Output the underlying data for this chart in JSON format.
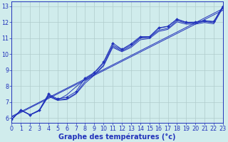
{
  "xlabel": "Graphe des températures (°c)",
  "background_color": "#d0ecec",
  "grid_color": "#b0cccc",
  "line_color": "#2233bb",
  "xlim": [
    0,
    23
  ],
  "ylim": [
    5.7,
    13.3
  ],
  "xticks": [
    0,
    1,
    2,
    3,
    4,
    5,
    6,
    7,
    8,
    9,
    10,
    11,
    12,
    13,
    14,
    15,
    16,
    17,
    18,
    19,
    20,
    21,
    22,
    23
  ],
  "yticks": [
    6,
    7,
    8,
    9,
    10,
    11,
    12,
    13
  ],
  "series_marked": [
    5.9,
    6.5,
    6.2,
    6.5,
    7.5,
    7.2,
    7.3,
    7.65,
    8.5,
    8.85,
    9.5,
    10.7,
    10.3,
    10.65,
    11.1,
    11.1,
    11.65,
    11.75,
    12.2,
    12.0,
    12.0,
    12.1,
    12.05,
    13.0
  ],
  "series_plain": [
    [
      5.9,
      6.5,
      6.2,
      6.45,
      7.4,
      7.15,
      7.2,
      7.55,
      8.3,
      8.72,
      9.3,
      10.5,
      10.2,
      10.5,
      11.0,
      11.05,
      11.5,
      11.62,
      12.1,
      11.95,
      11.95,
      12.05,
      11.97,
      12.97
    ],
    [
      5.9,
      6.48,
      6.18,
      6.45,
      7.35,
      7.1,
      7.15,
      7.5,
      8.18,
      8.68,
      9.25,
      10.42,
      10.15,
      10.42,
      10.9,
      10.98,
      11.42,
      11.55,
      12.02,
      11.88,
      11.88,
      11.98,
      11.9,
      12.9
    ],
    [
      5.9,
      6.49,
      6.19,
      6.46,
      7.46,
      7.12,
      7.45,
      7.95,
      8.42,
      8.82,
      9.43,
      10.58,
      10.27,
      10.58,
      11.04,
      11.05,
      11.62,
      11.73,
      12.17,
      11.99,
      12.0,
      12.09,
      12.01,
      13.01
    ]
  ],
  "regression_lines": [
    {
      "x0": 0,
      "y0": 6.1,
      "x1": 23,
      "y1": 12.85
    },
    {
      "x0": 0,
      "y0": 6.05,
      "x1": 23,
      "y1": 12.75
    }
  ],
  "xlabel_fontsize": 7,
  "tick_fontsize": 5.8
}
